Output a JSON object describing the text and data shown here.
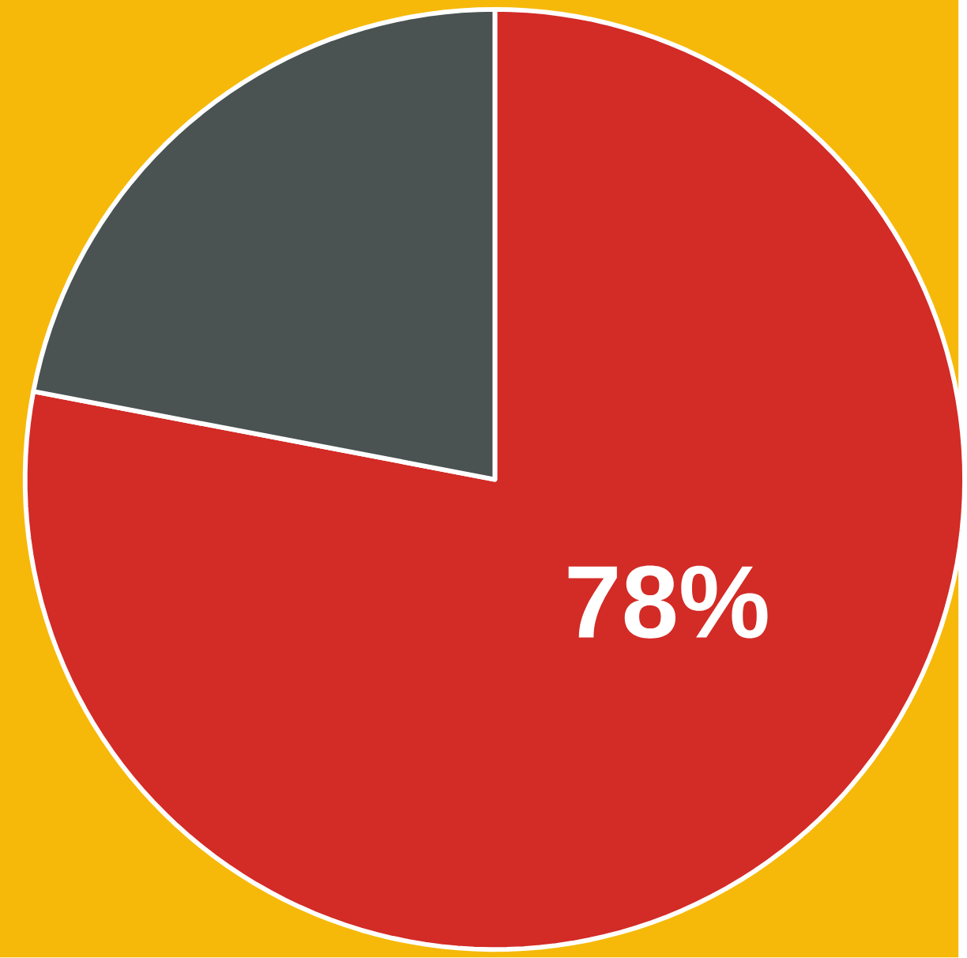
{
  "chart_data": {
    "type": "pie",
    "categories": [
      null,
      null
    ],
    "values": [
      78,
      22
    ],
    "colors": [
      "#d32b26",
      "#4a5252"
    ],
    "value_labels": [
      "78%",
      null
    ]
  }
}
